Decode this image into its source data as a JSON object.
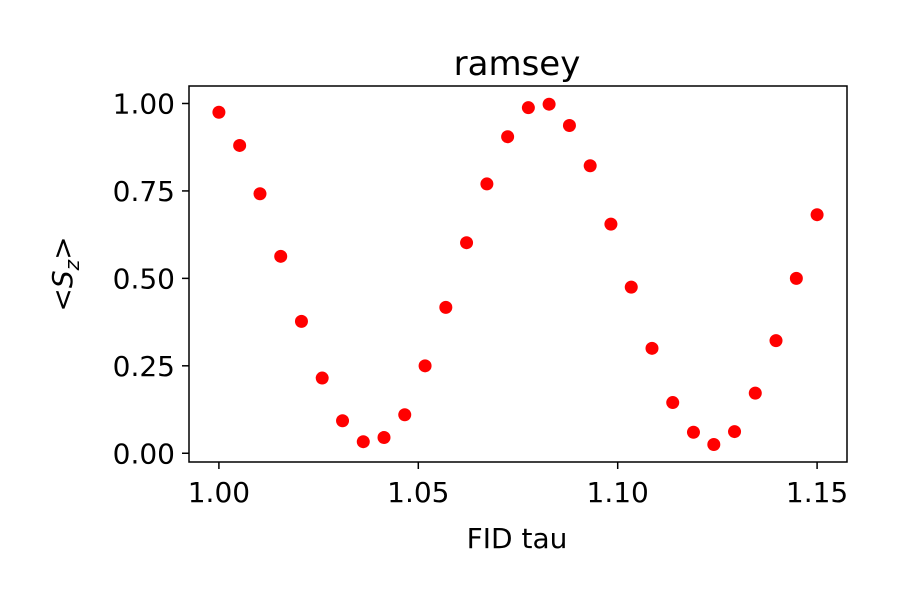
{
  "chart_data": {
    "type": "scatter",
    "title": "ramsey",
    "xlabel": "FID tau",
    "ylabel_parts": {
      "pre": "<",
      "symbol": "S",
      "subscript": "z",
      "post": ">"
    },
    "xlim": [
      0.9925,
      1.1575
    ],
    "ylim": [
      -0.025,
      1.05
    ],
    "xticks": [
      1.0,
      1.05,
      1.1,
      1.15
    ],
    "xtick_labels": [
      "1.00",
      "1.05",
      "1.10",
      "1.15"
    ],
    "yticks": [
      0.0,
      0.25,
      0.5,
      0.75,
      1.0
    ],
    "ytick_labels": [
      "0.00",
      "0.25",
      "0.50",
      "0.75",
      "1.00"
    ],
    "grid": false,
    "marker_color": "#ff0000",
    "series": [
      {
        "x": [
          1.0,
          1.0052,
          1.0103,
          1.0155,
          1.0207,
          1.0259,
          1.031,
          1.0362,
          1.0414,
          1.0466,
          1.0517,
          1.0569,
          1.0621,
          1.0672,
          1.0724,
          1.0776,
          1.0828,
          1.0879,
          1.0931,
          1.0983,
          1.1034,
          1.1086,
          1.1138,
          1.119,
          1.1241,
          1.1293,
          1.1345,
          1.1397,
          1.1448,
          1.15
        ],
        "y": [
          0.975,
          0.88,
          0.742,
          0.563,
          0.377,
          0.215,
          0.093,
          0.033,
          0.045,
          0.11,
          0.25,
          0.417,
          0.602,
          0.77,
          0.905,
          0.988,
          0.998,
          0.937,
          0.822,
          0.655,
          0.475,
          0.3,
          0.145,
          0.06,
          0.025,
          0.062,
          0.172,
          0.322,
          0.5,
          0.682
        ]
      }
    ]
  }
}
